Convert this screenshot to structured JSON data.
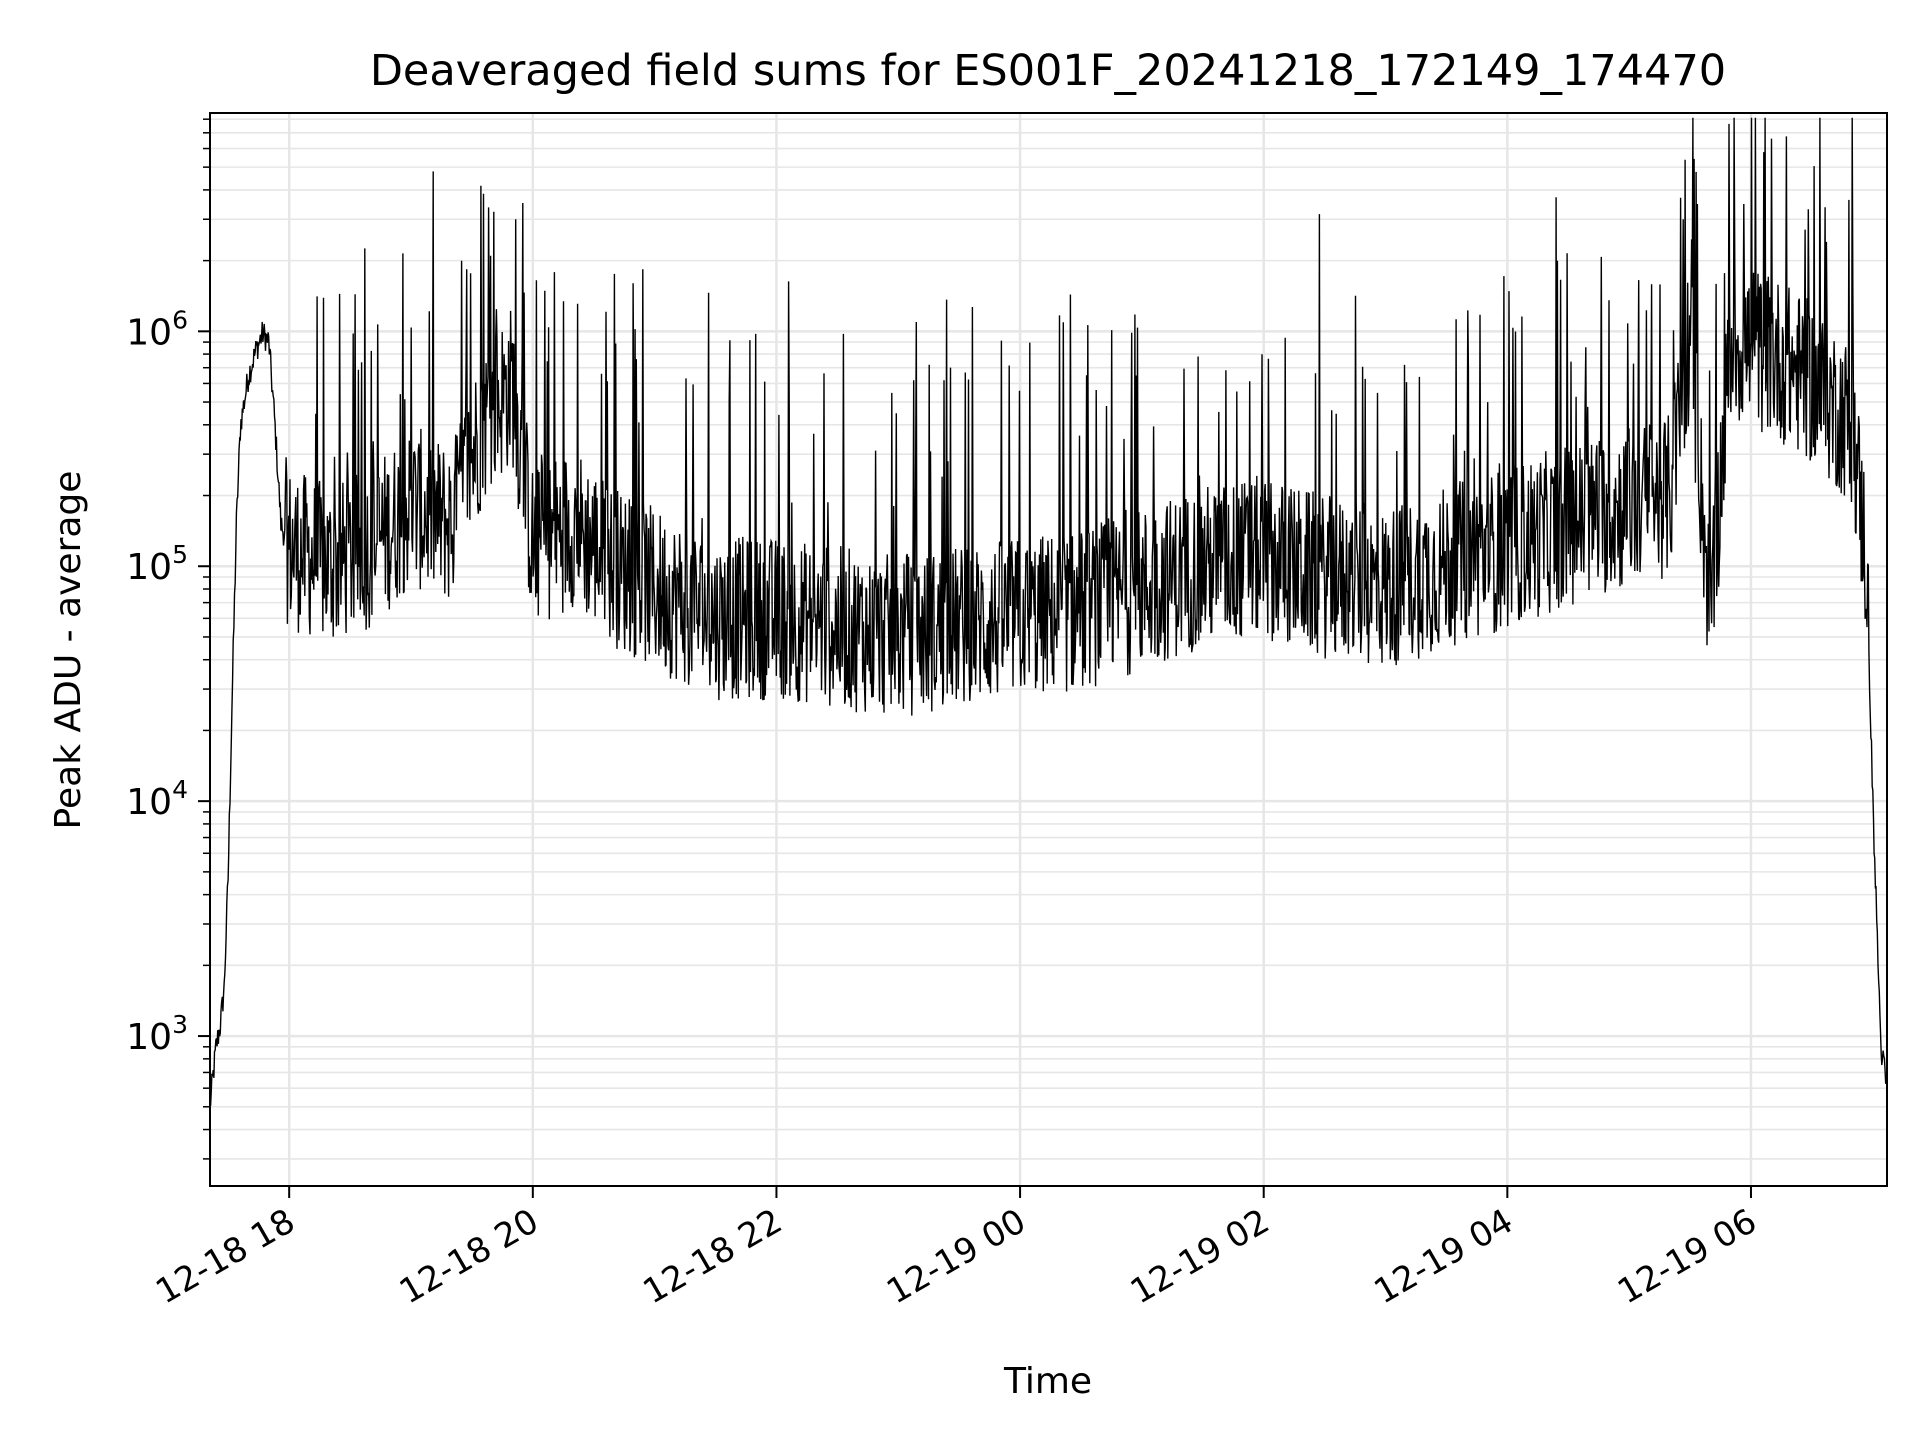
{
  "chart_data": {
    "type": "line",
    "title": "Deaveraged field sums for ES001F_20241218_172149_174470",
    "xlabel": "Time",
    "ylabel": "Peak ADU - average",
    "yscale": "log",
    "ylim": [
      230,
      8500000
    ],
    "xlim": [
      "2024-12-18 17:21",
      "2024-12-19 07:07"
    ],
    "grid": true,
    "line_color": "#000000",
    "x_ticks": [
      {
        "label": "12-18 18",
        "t": "2024-12-18 18:00"
      },
      {
        "label": "12-18 20",
        "t": "2024-12-18 20:00"
      },
      {
        "label": "12-18 22",
        "t": "2024-12-18 22:00"
      },
      {
        "label": "12-19 00",
        "t": "2024-12-19 00:00"
      },
      {
        "label": "12-19 02",
        "t": "2024-12-19 02:00"
      },
      {
        "label": "12-19 04",
        "t": "2024-12-19 04:00"
      },
      {
        "label": "12-19 06",
        "t": "2024-12-19 06:00"
      }
    ],
    "y_ticks": [
      {
        "base": "10",
        "exp": "3",
        "value": 1000
      },
      {
        "base": "10",
        "exp": "4",
        "value": 10000
      },
      {
        "base": "10",
        "exp": "5",
        "value": 100000
      },
      {
        "base": "10",
        "exp": "6",
        "value": 1000000
      }
    ],
    "series": [
      {
        "points": [
          [
            "2024-12-18 17:21",
            500
          ],
          [
            "2024-12-18 17:24",
            900
          ],
          [
            "2024-12-18 17:26",
            1100
          ],
          [
            "2024-12-18 17:28",
            1600
          ],
          [
            "2024-12-18 17:30",
            5000
          ],
          [
            "2024-12-18 17:32",
            30000
          ],
          [
            "2024-12-18 17:34",
            150000
          ],
          [
            "2024-12-18 17:36",
            400000
          ],
          [
            "2024-12-18 17:40",
            650000
          ],
          [
            "2024-12-18 17:44",
            850000
          ],
          [
            "2024-12-18 17:47",
            980000
          ],
          [
            "2024-12-18 17:50",
            900000
          ],
          [
            "2024-12-18 17:53",
            400000
          ],
          [
            "2024-12-18 17:56",
            150000
          ],
          [
            "2024-12-18 18:00",
            120000
          ],
          [
            "2024-12-18 18:20",
            100000
          ],
          [
            "2024-12-18 18:40",
            120000
          ],
          [
            "2024-12-18 19:00",
            180000
          ],
          [
            "2024-12-18 19:20",
            150000
          ],
          [
            "2024-12-18 19:35",
            400000
          ],
          [
            "2024-12-18 19:50",
            600000
          ],
          [
            "2024-12-18 20:00",
            120000
          ],
          [
            "2024-12-18 20:20",
            150000
          ],
          [
            "2024-12-18 20:40",
            100000
          ],
          [
            "2024-12-18 21:00",
            80000
          ],
          [
            "2024-12-18 21:30",
            60000
          ],
          [
            "2024-12-18 22:00",
            60000
          ],
          [
            "2024-12-18 22:30",
            55000
          ],
          [
            "2024-12-18 23:00",
            50000
          ],
          [
            "2024-12-18 23:30",
            55000
          ],
          [
            "2024-12-19 00:00",
            60000
          ],
          [
            "2024-12-19 00:30",
            65000
          ],
          [
            "2024-12-19 01:00",
            80000
          ],
          [
            "2024-12-19 01:30",
            100000
          ],
          [
            "2024-12-19 02:00",
            110000
          ],
          [
            "2024-12-19 02:30",
            90000
          ],
          [
            "2024-12-19 03:00",
            80000
          ],
          [
            "2024-12-19 03:30",
            100000
          ],
          [
            "2024-12-19 04:00",
            120000
          ],
          [
            "2024-12-19 04:30",
            150000
          ],
          [
            "2024-12-19 05:00",
            180000
          ],
          [
            "2024-12-19 05:20",
            200000
          ],
          [
            "2024-12-19 05:30",
            1000000
          ],
          [
            "2024-12-19 05:40",
            60000
          ],
          [
            "2024-12-19 05:50",
            900000
          ],
          [
            "2024-12-19 06:10",
            800000
          ],
          [
            "2024-12-19 06:30",
            600000
          ],
          [
            "2024-12-19 06:50",
            400000
          ],
          [
            "2024-12-19 06:57",
            100000
          ],
          [
            "2024-12-19 07:00",
            10000
          ],
          [
            "2024-12-19 07:02",
            3000
          ],
          [
            "2024-12-19 07:04",
            900
          ],
          [
            "2024-12-19 07:07",
            600
          ]
        ]
      }
    ]
  }
}
